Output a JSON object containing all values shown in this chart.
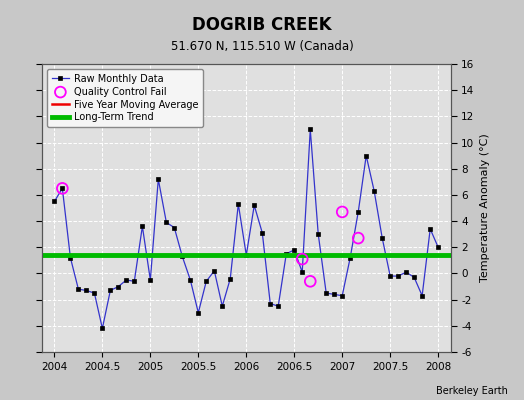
{
  "title": "DOGRIB CREEK",
  "subtitle": "51.670 N, 115.510 W (Canada)",
  "ylabel": "Temperature Anomaly (°C)",
  "credit": "Berkeley Earth",
  "xlim": [
    2003.87,
    2008.13
  ],
  "ylim": [
    -6,
    16
  ],
  "yticks": [
    -6,
    -4,
    -2,
    0,
    2,
    4,
    6,
    8,
    10,
    12,
    14,
    16
  ],
  "xticks": [
    2004,
    2004.5,
    2005,
    2005.5,
    2006,
    2006.5,
    2007,
    2007.5,
    2008
  ],
  "xtick_labels": [
    "2004",
    "2004.5",
    "2005",
    "2005.5",
    "2006",
    "2006.5",
    "2007",
    "2007.5",
    "2008"
  ],
  "long_term_trend_y": 1.4,
  "five_year_avg_y": 1.4,
  "raw_x": [
    2004.0,
    2004.083,
    2004.167,
    2004.25,
    2004.333,
    2004.417,
    2004.5,
    2004.583,
    2004.667,
    2004.75,
    2004.833,
    2004.917,
    2005.0,
    2005.083,
    2005.167,
    2005.25,
    2005.333,
    2005.417,
    2005.5,
    2005.583,
    2005.667,
    2005.75,
    2005.833,
    2005.917,
    2006.0,
    2006.083,
    2006.167,
    2006.25,
    2006.333,
    2006.417,
    2006.5,
    2006.583,
    2006.667,
    2006.75,
    2006.833,
    2006.917,
    2007.0,
    2007.083,
    2007.167,
    2007.25,
    2007.333,
    2007.417,
    2007.5,
    2007.583,
    2007.667,
    2007.75,
    2007.833,
    2007.917,
    2008.0
  ],
  "raw_y": [
    5.5,
    6.5,
    1.2,
    -1.2,
    -1.3,
    -1.5,
    -4.2,
    -1.3,
    -1.0,
    -0.5,
    -0.6,
    3.6,
    -0.5,
    7.2,
    3.9,
    3.5,
    1.3,
    -0.5,
    -3.0,
    -0.6,
    0.2,
    -2.5,
    -0.4,
    5.3,
    1.4,
    5.2,
    3.1,
    -2.3,
    -2.5,
    1.5,
    1.8,
    0.1,
    11.0,
    3.0,
    -1.5,
    -1.6,
    -1.7,
    1.2,
    4.7,
    9.0,
    6.3,
    2.7,
    -0.2,
    -0.2,
    0.1,
    -0.3,
    -1.7,
    3.4,
    2.0
  ],
  "qc_fail_x": [
    2004.083,
    2006.583,
    2006.667,
    2007.0,
    2007.167
  ],
  "qc_fail_y": [
    6.5,
    1.1,
    -0.6,
    4.7,
    2.7
  ],
  "line_color": "#3333cc",
  "marker_color": "#000000",
  "qc_color": "#ff00ff",
  "trend_color": "#00bb00",
  "five_yr_color": "#ee0000",
  "bg_color": "#c8c8c8",
  "plot_bg_color": "#e0e0e0",
  "grid_color": "#ffffff",
  "legend_bg": "#f5f5f5"
}
